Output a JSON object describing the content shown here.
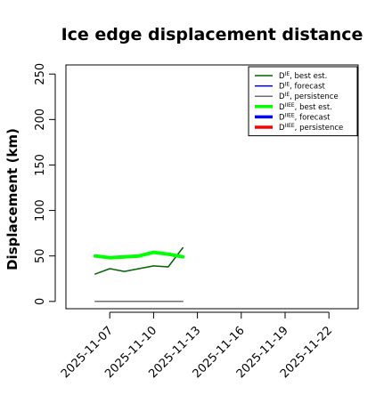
{
  "chart_data": {
    "type": "line",
    "title": "Ice edge displacement distance",
    "xlabel": "",
    "ylabel": "Displacement (km)",
    "ylim": [
      -8,
      260
    ],
    "yticks": [
      0,
      50,
      100,
      150,
      200,
      250
    ],
    "xlim": [
      "2025-11-04",
      "2025-11-24"
    ],
    "xticks": [
      "2025-11-07",
      "2025-11-10",
      "2025-11-13",
      "2025-11-16",
      "2025-11-19",
      "2025-11-22"
    ],
    "highlight_tick": "2025-11-13",
    "highlight_color": "#228B22",
    "grid": false,
    "legend_position": "top-right",
    "series": [
      {
        "name": "D^IE, best est.",
        "color": "#006400",
        "width": "thin",
        "x": [
          "2025-11-06",
          "2025-11-07",
          "2025-11-08",
          "2025-11-09",
          "2025-11-10",
          "2025-11-11",
          "2025-11-12"
        ],
        "values": [
          30,
          36,
          33,
          36,
          39,
          38,
          59
        ]
      },
      {
        "name": "D^IE, forecast",
        "color": "#0000CD",
        "width": "thin",
        "x": [],
        "values": []
      },
      {
        "name": "D^IE, persistence",
        "color": "#6e6e6e",
        "width": "thin",
        "x": [
          "2025-11-06",
          "2025-11-12"
        ],
        "values": [
          0,
          0
        ]
      },
      {
        "name": "D^IIEE, best est.",
        "color": "#00ff00",
        "width": "thick",
        "x": [
          "2025-11-06",
          "2025-11-07",
          "2025-11-08",
          "2025-11-09",
          "2025-11-10",
          "2025-11-11",
          "2025-11-12"
        ],
        "values": [
          50,
          48,
          49,
          50,
          54,
          52,
          49
        ]
      },
      {
        "name": "D^IIEE, forecast",
        "color": "#0000ff",
        "width": "thick",
        "x": [],
        "values": []
      },
      {
        "name": "D^IIEE, persistence",
        "color": "#ff0000",
        "width": "thick",
        "x": [],
        "values": []
      }
    ]
  }
}
